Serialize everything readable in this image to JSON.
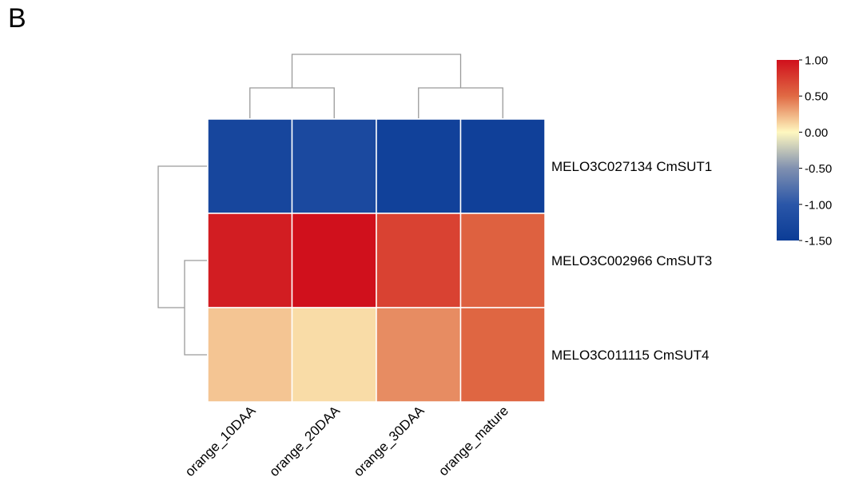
{
  "panel_label": "B",
  "chart_data": {
    "type": "heatmap",
    "title": "",
    "xlabel": "",
    "ylabel": "",
    "columns": [
      "orange_10DAA",
      "orange_20DAA",
      "orange_30DAA",
      "orange_mature"
    ],
    "rows": [
      "MELO3C027134 CmSUT1",
      "MELO3C002966 CmSUT3",
      "MELO3C011115 CmSUT4"
    ],
    "values": [
      [
        -1.3,
        -1.25,
        -1.4,
        -1.42
      ],
      [
        0.93,
        1.0,
        0.72,
        0.55
      ],
      [
        0.18,
        0.1,
        0.38,
        0.52
      ]
    ],
    "color_scale": {
      "min": -1.5,
      "max": 1.0,
      "stops": [
        {
          "value": -1.5,
          "color": "#0b3c96"
        },
        {
          "value": -1.0,
          "color": "#2a56a8"
        },
        {
          "value": -0.5,
          "color": "#8090b0"
        },
        {
          "value": 0.0,
          "color": "#fff8c0"
        },
        {
          "value": 0.5,
          "color": "#e06a44"
        },
        {
          "value": 1.0,
          "color": "#d0101c"
        }
      ],
      "ticks": [
        "1.00",
        "0.50",
        "0.00",
        "-0.50",
        "-1.00",
        "-1.50"
      ],
      "tick_values": [
        1.0,
        0.5,
        0.0,
        -0.5,
        -1.0,
        -1.5
      ],
      "legend_placement": "top-right"
    },
    "column_dendrogram": {
      "order": [
        "orange_10DAA",
        "orange_20DAA",
        "orange_30DAA",
        "orange_mature"
      ],
      "merges": [
        {
          "left": "orange_10DAA",
          "right": "orange_20DAA",
          "height": 1
        },
        {
          "left": "orange_30DAA",
          "right": "orange_mature",
          "height": 1
        },
        {
          "left": "cluster_1",
          "right": "cluster_2",
          "height": 2
        }
      ]
    },
    "row_dendrogram": {
      "order": [
        "MELO3C027134 CmSUT1",
        "MELO3C002966 CmSUT3",
        "MELO3C011115 CmSUT4"
      ],
      "merges": [
        {
          "left": "MELO3C002966 CmSUT3",
          "right": "MELO3C011115 CmSUT4",
          "height": 1
        },
        {
          "left": "MELO3C027134 CmSUT1",
          "right": "cluster_1",
          "height": 2
        }
      ]
    },
    "grid": false
  }
}
